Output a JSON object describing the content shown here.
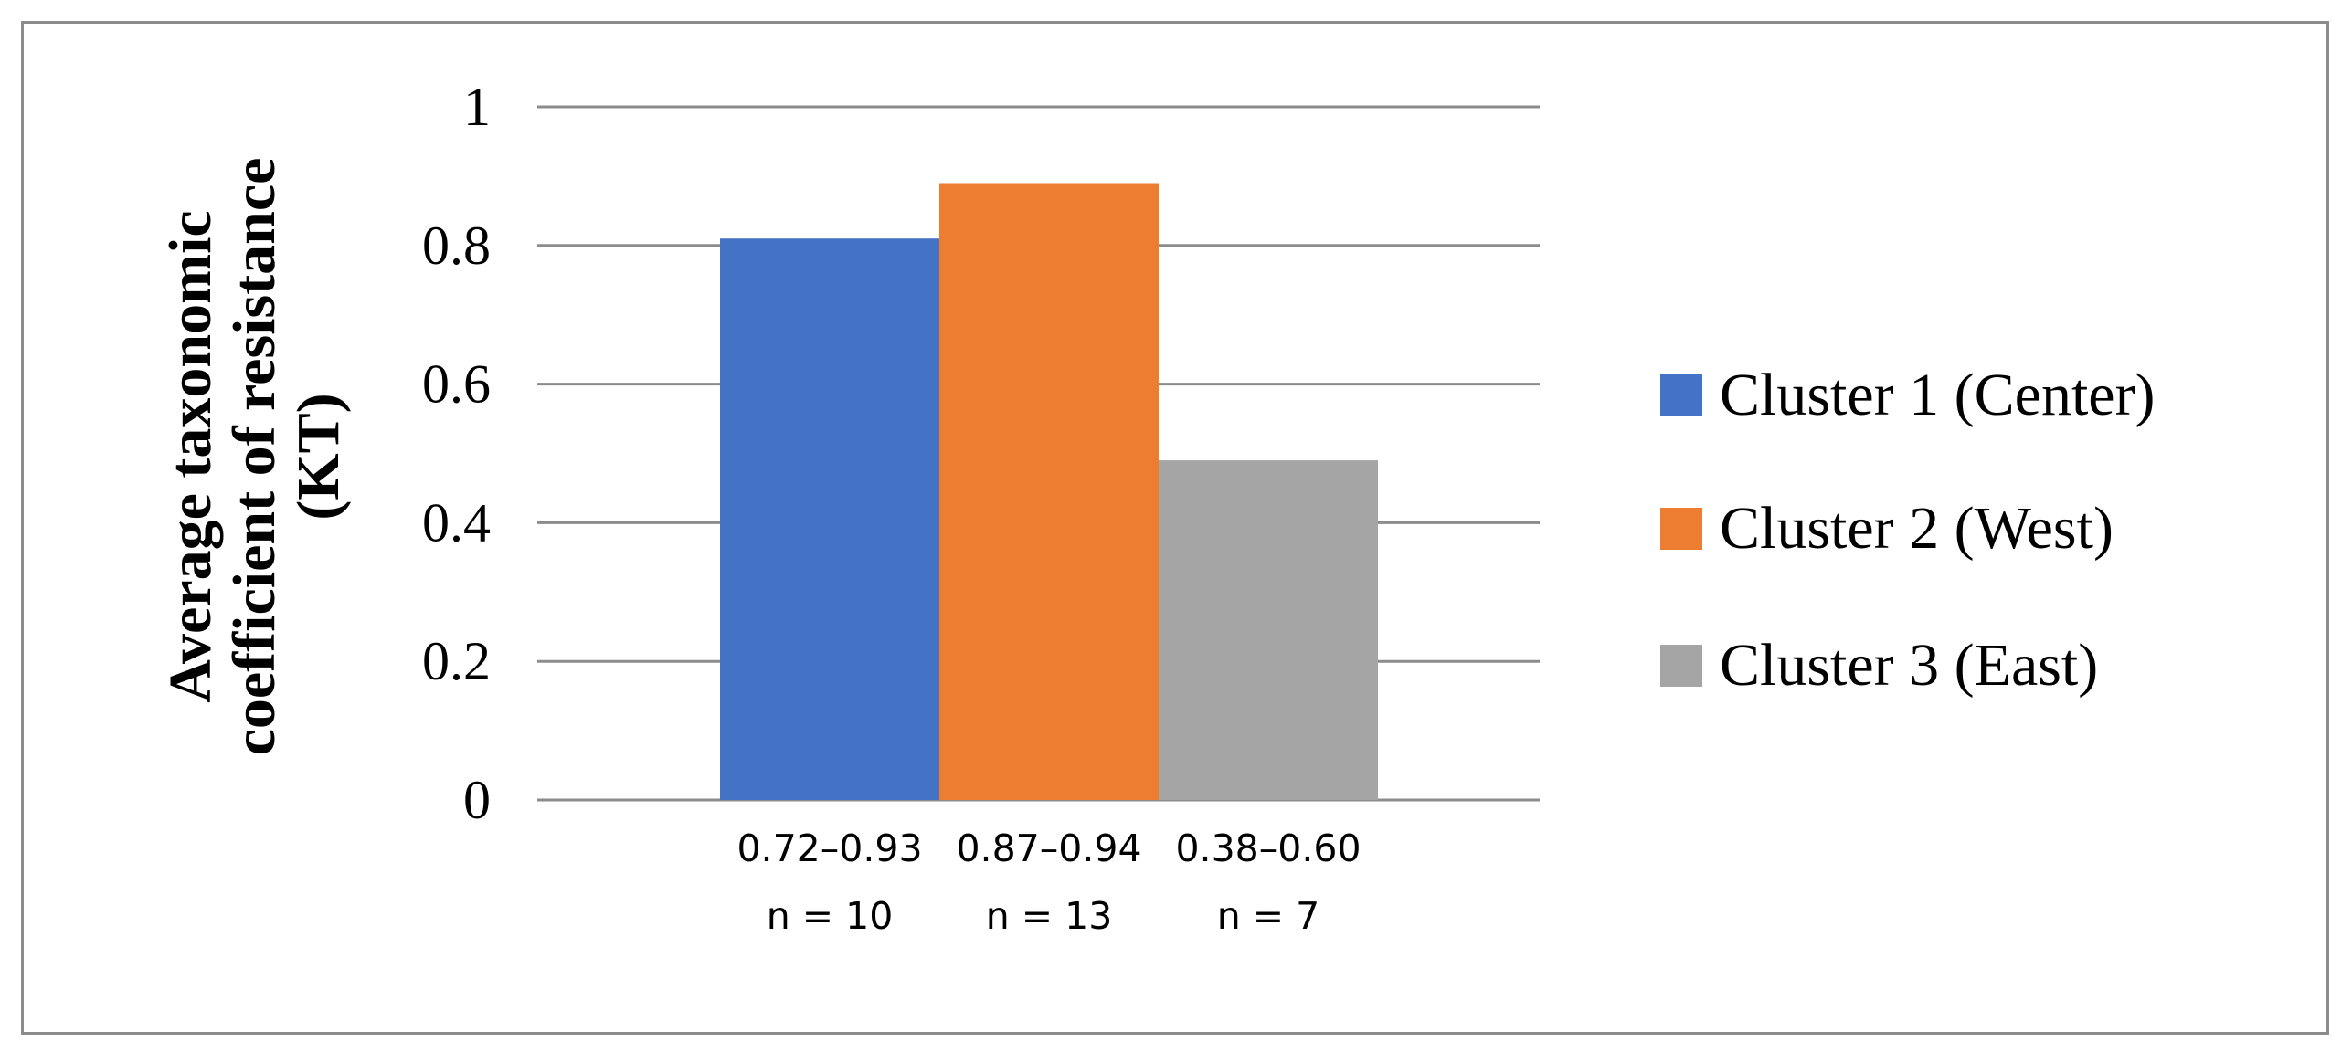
{
  "chart_data": {
    "type": "bar",
    "title": "",
    "ylabel": [
      "Average taxonomic",
      "coefficient of resistance",
      "(KT)"
    ],
    "xlabel": "",
    "ylim": [
      0,
      1
    ],
    "yticks": [
      "0",
      "0.2",
      "0.4",
      "0.6",
      "0.8",
      "1"
    ],
    "grid": true,
    "legend_position": "right",
    "series": [
      {
        "name": "Cluster 1 (Center)",
        "value": 0.81,
        "color": "#4472c4",
        "category": [
          "0.72–0.93",
          "n = 10"
        ]
      },
      {
        "name": "Cluster 2 (West)",
        "value": 0.89,
        "color": "#ed7d31",
        "category": [
          "0.87–0.94",
          "n = 13"
        ]
      },
      {
        "name": "Cluster 3 (East)",
        "value": 0.49,
        "color": "#a5a5a5",
        "category": [
          "0.38–0.60",
          "n = 7"
        ]
      }
    ]
  }
}
